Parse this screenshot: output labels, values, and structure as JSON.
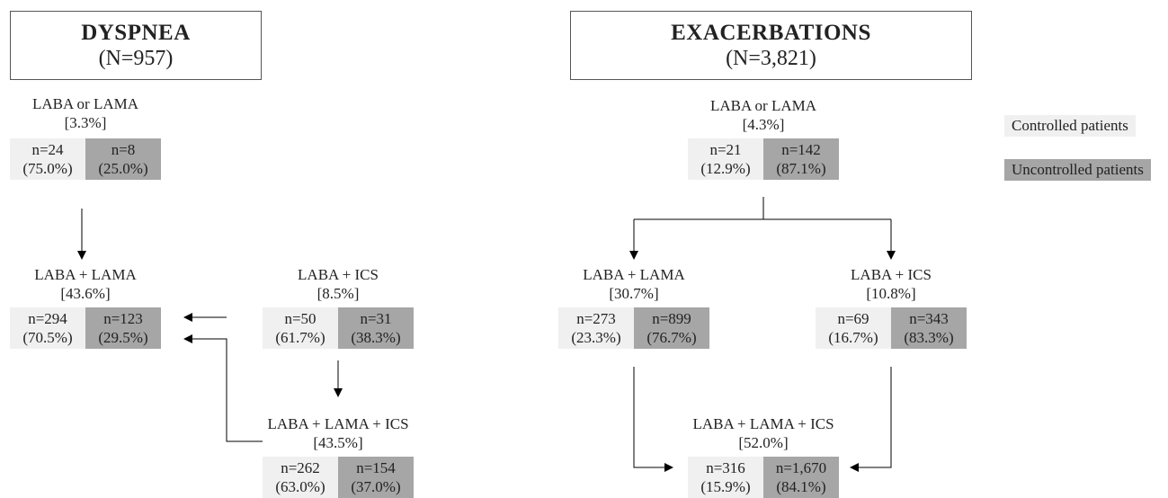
{
  "panels": {
    "dyspnea": {
      "title": "DYSPNEA",
      "n": "(N=957)",
      "nodes": {
        "laba_or_lama": {
          "label": "LABA or LAMA",
          "pct": "[3.3%]",
          "controlled": {
            "n": "n=24",
            "pct": "(75.0%)"
          },
          "uncontrolled": {
            "n": "n=8",
            "pct": "(25.0%)"
          }
        },
        "laba_lama": {
          "label": "LABA + LAMA",
          "pct": "[43.6%]",
          "controlled": {
            "n": "n=294",
            "pct": "(70.5%)"
          },
          "uncontrolled": {
            "n": "n=123",
            "pct": "(29.5%)"
          }
        },
        "laba_ics": {
          "label": "LABA + ICS",
          "pct": "[8.5%]",
          "controlled": {
            "n": "n=50",
            "pct": "(61.7%)"
          },
          "uncontrolled": {
            "n": "n=31",
            "pct": "(38.3%)"
          }
        },
        "laba_lama_ics": {
          "label": "LABA + LAMA + ICS",
          "pct": "[43.5%]",
          "controlled": {
            "n": "n=262",
            "pct": "(63.0%)"
          },
          "uncontrolled": {
            "n": "n=154",
            "pct": "(37.0%)"
          }
        }
      }
    },
    "exacerbations": {
      "title": "EXACERBATIONS",
      "n": "(N=3,821)",
      "nodes": {
        "laba_or_lama": {
          "label": "LABA or LAMA",
          "pct": "[4.3%]",
          "controlled": {
            "n": "n=21",
            "pct": "(12.9%)"
          },
          "uncontrolled": {
            "n": "n=142",
            "pct": "(87.1%)"
          }
        },
        "laba_lama": {
          "label": "LABA + LAMA",
          "pct": "[30.7%]",
          "controlled": {
            "n": "n=273",
            "pct": "(23.3%)"
          },
          "uncontrolled": {
            "n": "n=899",
            "pct": "(76.7%)"
          }
        },
        "laba_ics": {
          "label": "LABA + ICS",
          "pct": "[10.8%]",
          "controlled": {
            "n": "n=69",
            "pct": "(16.7%)"
          },
          "uncontrolled": {
            "n": "n=343",
            "pct": "(83.3%)"
          }
        },
        "laba_lama_ics": {
          "label": "LABA + LAMA + ICS",
          "pct": "[52.0%]",
          "controlled": {
            "n": "n=316",
            "pct": "(15.9%)"
          },
          "uncontrolled": {
            "n": "n=1,670",
            "pct": "(84.1%)"
          }
        }
      }
    }
  },
  "legend": {
    "controlled": "Controlled patients",
    "uncontrolled": "Uncontrolled patients"
  },
  "colors": {
    "controlled": "#f0f0f0",
    "uncontrolled": "#a6a6a6",
    "line": "#000000"
  }
}
